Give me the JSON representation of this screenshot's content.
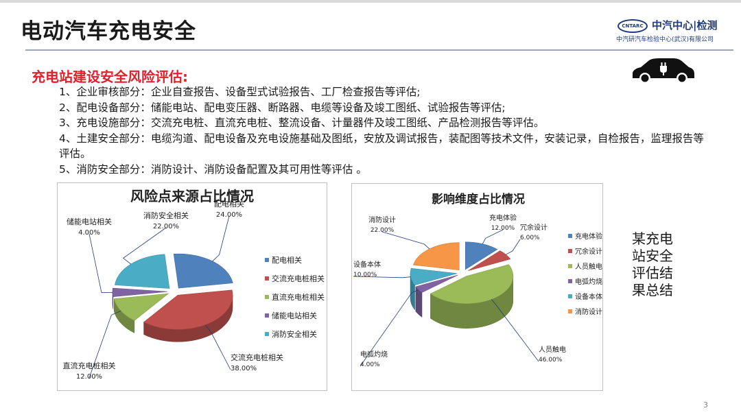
{
  "header": {
    "title": "电动汽车充电安全",
    "logo": {
      "mark": "CNTARC",
      "name": "中汽中心|检测",
      "subtitle": "中汽研汽车检验中心(武汉)有限公司"
    }
  },
  "section": {
    "heading": "充电站建设安全风险评估:",
    "items": [
      "1、企业审核部分：企业自查报告、设备型式试验报告、工厂检查报告等评估;",
      "2、配电设备部分：储能电站、配电变压器、断路器、电缆等设备及竣工图纸、试验报告等评估;",
      "3、充电设施部分：交流充电桩、直流充电桩、整流设备、计量器件及竣工图纸、产品检测报告等评估。",
      "4、土建安全部分：电缆沟道、配电设备及充电设施基础及图纸，安放及调试报告，装配图等技术文件，安装记录，自检报告，监理报告等评估。",
      "5、消防安全部分：消防设计、消防设备配置及其可用性等评估 。"
    ]
  },
  "icons": {
    "car": "electric-car-plug-icon"
  },
  "chart_data": [
    {
      "type": "pie",
      "style": "3d-exploded",
      "title": "风险点来源占比情况",
      "legend_position": "right",
      "categories": [
        "配电相关",
        "交流充电桩相关",
        "直流充电桩相关",
        "储能电站相关",
        "消防安全相关"
      ],
      "values": [
        24.0,
        38.0,
        12.0,
        4.0,
        22.0
      ],
      "value_labels": [
        "24.00%",
        "38.00%",
        "12.00%",
        "4.00%",
        "22.00%"
      ],
      "colors": [
        "#4f81bd",
        "#c0504d",
        "#9bbb59",
        "#8064a2",
        "#4bacc6"
      ]
    },
    {
      "type": "pie",
      "style": "3d-exploded",
      "title": "影响维度占比情况",
      "legend_position": "right",
      "categories": [
        "充电体验",
        "冗余设计",
        "人员触电",
        "电弧灼烧",
        "设备本体",
        "消防设计"
      ],
      "values": [
        12.0,
        6.0,
        46.0,
        4.0,
        10.0,
        22.0
      ],
      "value_labels": [
        "12.00%",
        "6.00%",
        "46.00%",
        "4.00%",
        "10.00%",
        "22.00%"
      ],
      "colors": [
        "#4f81bd",
        "#c0504d",
        "#9bbb59",
        "#8064a2",
        "#4bacc6",
        "#f79646"
      ]
    }
  ],
  "summary": "某充电站安全评估结果总结",
  "page_number": "3"
}
